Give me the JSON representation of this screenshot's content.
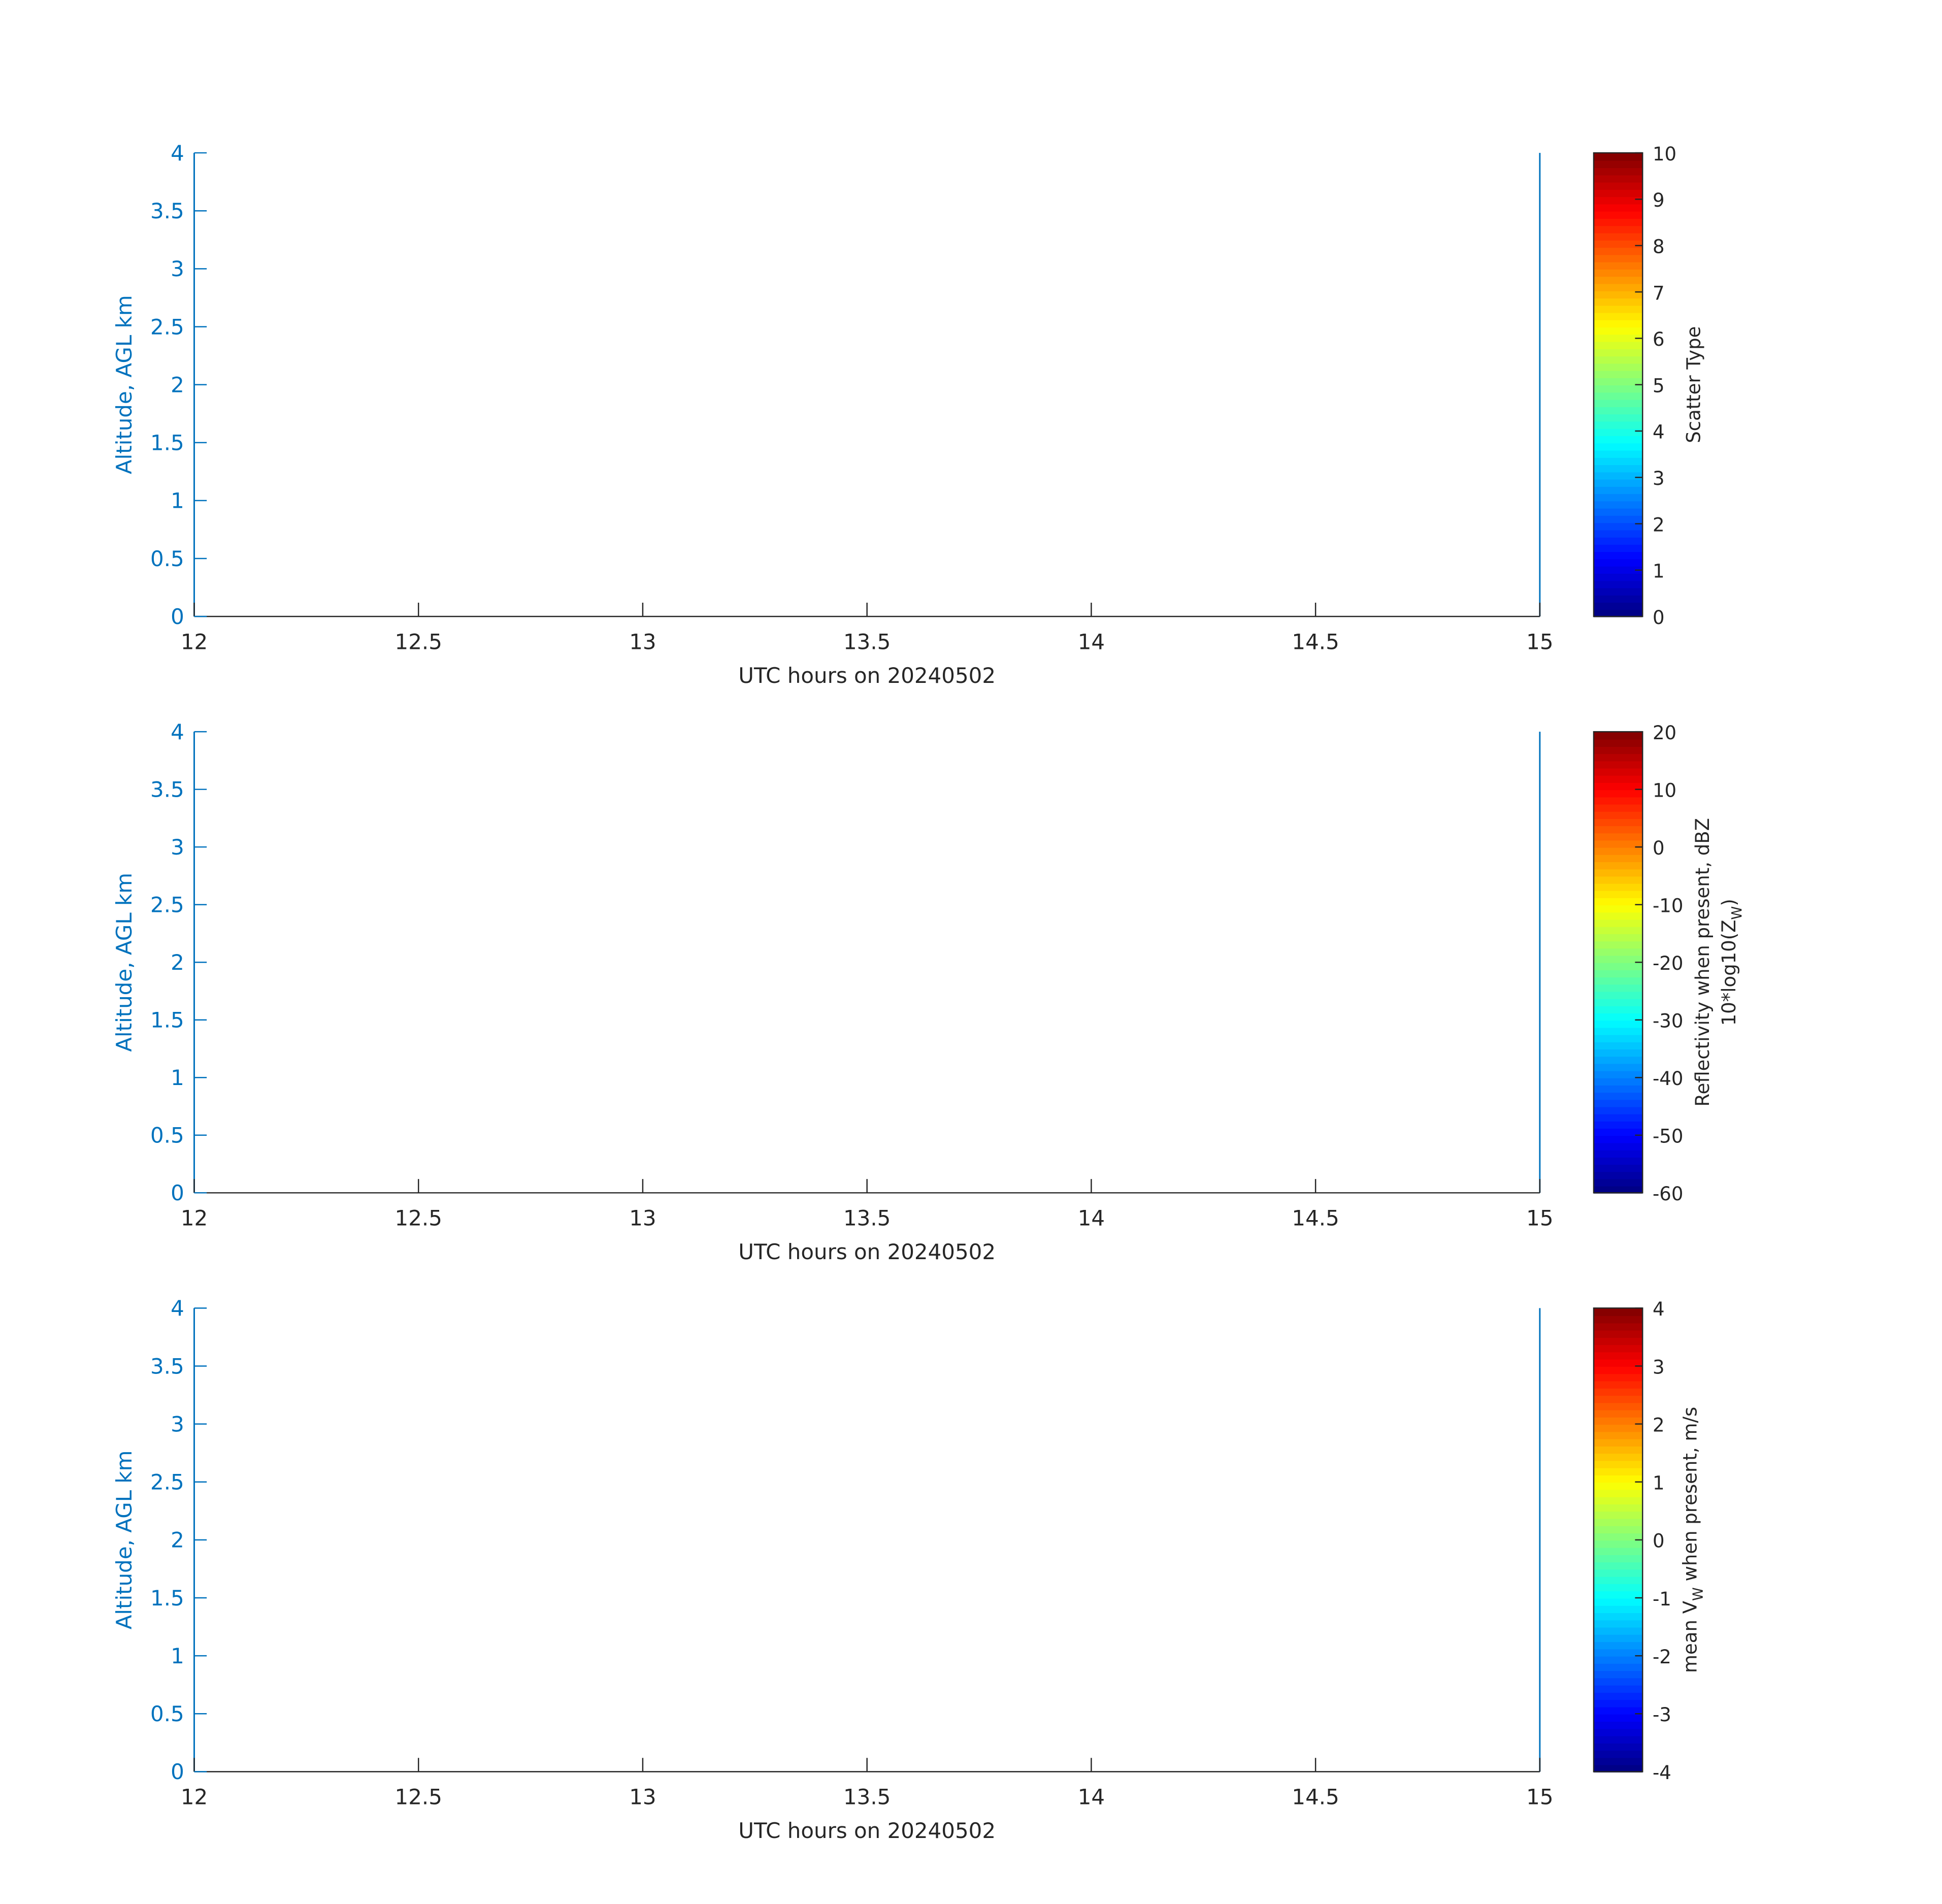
{
  "chart_data": [
    {
      "type": "heatmap",
      "xlabel": "UTC hours on 20240502",
      "ylabel": "Altitude, AGL km",
      "xlim": [
        12,
        15
      ],
      "ylim": [
        0,
        4
      ],
      "xticks": [
        "12",
        "12.5",
        "13",
        "13.5",
        "14",
        "14.5",
        "15"
      ],
      "yticks": [
        "0",
        "0.5",
        "1",
        "1.5",
        "2",
        "2.5",
        "3",
        "3.5",
        "4"
      ],
      "values": [],
      "colorbar": {
        "colormap": "jet",
        "range": [
          0,
          10
        ],
        "ticks": [
          "0",
          "1",
          "2",
          "3",
          "4",
          "5",
          "6",
          "7",
          "8",
          "9",
          "10"
        ],
        "label": [
          "Scatter Type"
        ]
      }
    },
    {
      "type": "heatmap",
      "xlabel": "UTC hours on 20240502",
      "ylabel": "Altitude, AGL km",
      "xlim": [
        12,
        15
      ],
      "ylim": [
        0,
        4
      ],
      "xticks": [
        "12",
        "12.5",
        "13",
        "13.5",
        "14",
        "14.5",
        "15"
      ],
      "yticks": [
        "0",
        "0.5",
        "1",
        "1.5",
        "2",
        "2.5",
        "3",
        "3.5",
        "4"
      ],
      "values": [],
      "colorbar": {
        "colormap": "jet",
        "range": [
          -60,
          20
        ],
        "ticks": [
          "-60",
          "-50",
          "-40",
          "-30",
          "-20",
          "-10",
          "0",
          "10",
          "20"
        ],
        "label": [
          "Reflectivity when present, dBZ",
          "10*log10(Z",
          "W",
          ")"
        ]
      }
    },
    {
      "type": "heatmap",
      "xlabel": "UTC hours on 20240502",
      "ylabel": "Altitude, AGL km",
      "xlim": [
        12,
        15
      ],
      "ylim": [
        0,
        4
      ],
      "xticks": [
        "12",
        "12.5",
        "13",
        "13.5",
        "14",
        "14.5",
        "15"
      ],
      "yticks": [
        "0",
        "0.5",
        "1",
        "1.5",
        "2",
        "2.5",
        "3",
        "3.5",
        "4"
      ],
      "values": [],
      "colorbar": {
        "colormap": "jet",
        "range": [
          -4,
          4
        ],
        "ticks": [
          "-4",
          "-3",
          "-2",
          "-1",
          "0",
          "1",
          "2",
          "3",
          "4"
        ],
        "label": [
          "mean V",
          "W",
          " when present, m/s"
        ]
      }
    }
  ],
  "colors": {
    "left_axis": "#0072BD",
    "bottom_axis": "#262626"
  }
}
